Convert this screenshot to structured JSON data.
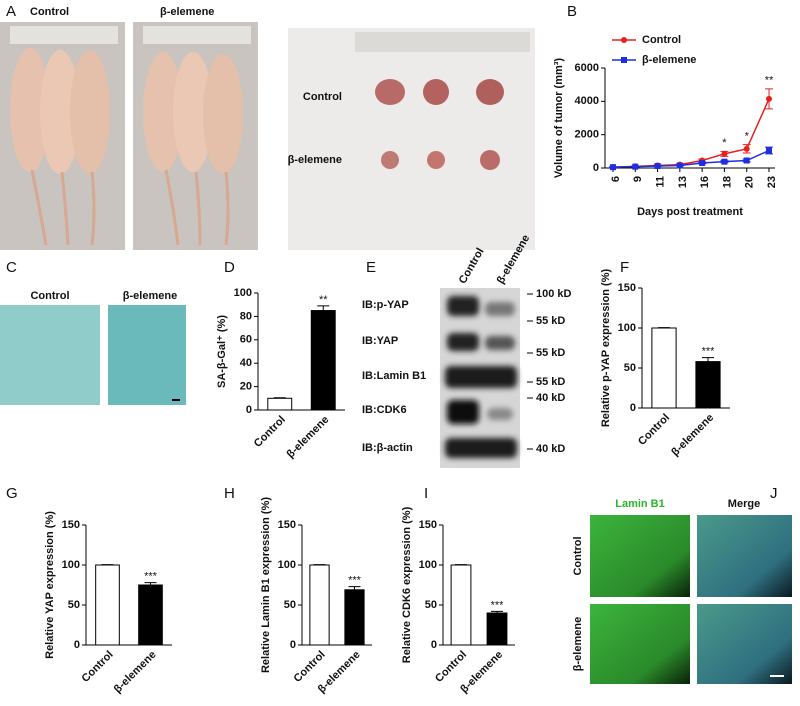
{
  "panel_labels": [
    "A",
    "B",
    "C",
    "D",
    "E",
    "F",
    "G",
    "H",
    "I",
    "J"
  ],
  "panel_a": {
    "mice_labels": [
      "Control",
      "β-elemene"
    ],
    "tumor_rows": [
      "Control",
      "β-elemene"
    ]
  },
  "panel_c": {
    "labels": [
      "Control",
      "β-elemene"
    ]
  },
  "panel_e": {
    "columns": [
      "Control",
      "β-elemene"
    ],
    "rows": [
      "IB:p-YAP",
      "IB:YAP",
      "IB:Lamin B1",
      "IB:CDK6",
      "IB:β-actin"
    ],
    "markers": [
      "100 kD",
      "55 kD",
      "55 kD",
      "55 kD",
      "40 kD",
      "40 kD"
    ]
  },
  "panel_j": {
    "columns": [
      "Lamin B1",
      "Merge"
    ],
    "rows": [
      "Control",
      "β-elemene"
    ]
  },
  "chart_data": [
    {
      "type": "line",
      "panel": "B",
      "categories": [
        "6",
        "9",
        "11",
        "13",
        "16",
        "18",
        "20",
        "23"
      ],
      "series": [
        {
          "name": "Control",
          "color": "#e8211e",
          "marker": "circle",
          "values": [
            50,
            100,
            150,
            200,
            450,
            850,
            1150,
            4150
          ],
          "errors": [
            20,
            30,
            40,
            50,
            80,
            150,
            250,
            600
          ]
        },
        {
          "name": "β-elemene",
          "color": "#1f2ee0",
          "marker": "square",
          "values": [
            50,
            80,
            120,
            150,
            300,
            380,
            450,
            1050
          ],
          "errors": [
            20,
            20,
            30,
            30,
            50,
            60,
            80,
            200
          ]
        }
      ],
      "annotations": [
        null,
        null,
        null,
        null,
        null,
        "*",
        "*",
        "**"
      ],
      "ylim": [
        0,
        6000
      ],
      "yticks": [
        0,
        2000,
        4000,
        6000
      ],
      "y_label": "Volume of tumor (mm³)",
      "x_label": "Days post treatment"
    },
    {
      "type": "bar",
      "panel": "D",
      "categories": [
        "Control",
        "β-elemene"
      ],
      "values": [
        10,
        85
      ],
      "errors": [
        0.5,
        4
      ],
      "colors": [
        "#ffffff",
        "#000000"
      ],
      "annotations": [
        null,
        "**"
      ],
      "ylim": [
        0,
        100
      ],
      "yticks": [
        0,
        20,
        40,
        60,
        80,
        100
      ],
      "y_label": "SA-β-Gal⁺ (%)"
    },
    {
      "type": "bar",
      "panel": "F",
      "categories": [
        "Control",
        "β-elemene"
      ],
      "values": [
        100,
        58
      ],
      "errors": [
        0.5,
        5
      ],
      "colors": [
        "#ffffff",
        "#000000"
      ],
      "annotations": [
        null,
        "***"
      ],
      "ylim": [
        0,
        150
      ],
      "yticks": [
        0,
        50,
        100,
        150
      ],
      "y_label": "Relative p-YAP expression (%)"
    },
    {
      "type": "bar",
      "panel": "G",
      "categories": [
        "Control",
        "β-elemene"
      ],
      "values": [
        100,
        75
      ],
      "errors": [
        0.5,
        3
      ],
      "colors": [
        "#ffffff",
        "#000000"
      ],
      "annotations": [
        null,
        "***"
      ],
      "ylim": [
        0,
        150
      ],
      "yticks": [
        0,
        50,
        100,
        150
      ],
      "y_label": "Relative YAP expression (%)"
    },
    {
      "type": "bar",
      "panel": "H",
      "categories": [
        "Control",
        "β-elemene"
      ],
      "values": [
        100,
        69
      ],
      "errors": [
        0.5,
        4
      ],
      "colors": [
        "#ffffff",
        "#000000"
      ],
      "annotations": [
        null,
        "***"
      ],
      "ylim": [
        0,
        150
      ],
      "yticks": [
        0,
        50,
        100,
        150
      ],
      "y_label": "Relative Lamin B1 expression (%)"
    },
    {
      "type": "bar",
      "panel": "I",
      "categories": [
        "Control",
        "β-elemene"
      ],
      "values": [
        100,
        40
      ],
      "errors": [
        0.5,
        2
      ],
      "colors": [
        "#ffffff",
        "#000000"
      ],
      "annotations": [
        null,
        "***"
      ],
      "ylim": [
        0,
        150
      ],
      "yticks": [
        0,
        50,
        100,
        150
      ],
      "y_label": "Relative CDK6 expression (%)"
    }
  ]
}
